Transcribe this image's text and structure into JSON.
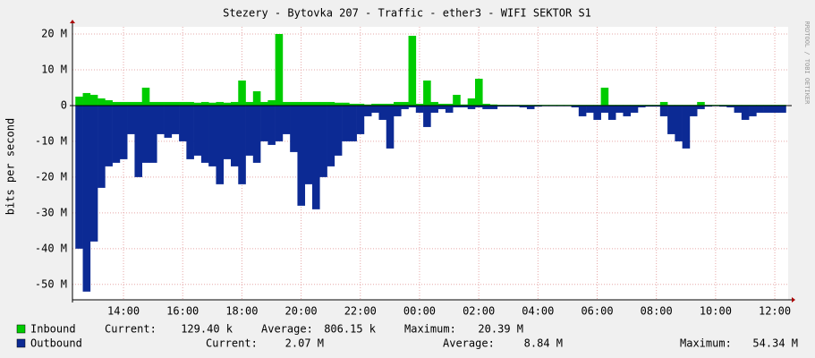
{
  "chart_data": {
    "type": "rrd-area",
    "title": "Stezery - Bytovka 207 - Traffic - ether3 - WIFI SEKTOR S1",
    "y_label": "bits per second",
    "watermark": "RRDTOOL / TOBI OETIKER",
    "categories": [
      null,
      null,
      null,
      null,
      null,
      null,
      "14:00",
      null,
      null,
      null,
      null,
      null,
      null,
      null,
      "16:00",
      null,
      null,
      null,
      null,
      null,
      null,
      null,
      "18:00",
      null,
      null,
      null,
      null,
      null,
      null,
      null,
      "20:00",
      null,
      null,
      null,
      null,
      null,
      null,
      null,
      "22:00",
      null,
      null,
      null,
      null,
      null,
      null,
      null,
      "00:00",
      null,
      null,
      null,
      null,
      null,
      null,
      null,
      "02:00",
      null,
      null,
      null,
      null,
      null,
      null,
      null,
      "04:00",
      null,
      null,
      null,
      null,
      null,
      null,
      null,
      "06:00",
      null,
      null,
      null,
      null,
      null,
      null,
      null,
      "08:00",
      null,
      null,
      null,
      null,
      null,
      null,
      null,
      "10:00",
      null,
      null,
      null,
      null,
      null,
      null,
      null,
      "12:00",
      null
    ],
    "ylim": [
      -54.3,
      22
    ],
    "yticks": [
      {
        "value": 20,
        "label": "20 M"
      },
      {
        "value": 10,
        "label": "10 M"
      },
      0,
      {
        "value": -10,
        "label": "-10 M"
      },
      {
        "value": -20,
        "label": "-20 M"
      },
      {
        "value": -30,
        "label": "-30 M"
      },
      {
        "value": -40,
        "label": "-40 M"
      },
      {
        "value": -50,
        "label": "-50 M"
      }
    ],
    "grid": true,
    "series": [
      {
        "name": "Inbound",
        "color": "#00cc00",
        "values": [
          2.5,
          3.5,
          3,
          2,
          1.5,
          1,
          1,
          1,
          1,
          5,
          1,
          1,
          1,
          1,
          1,
          1,
          0.8,
          1,
          0.8,
          1,
          0.8,
          1,
          7,
          1,
          4,
          1,
          1.5,
          20,
          1,
          1,
          1,
          1,
          1,
          1,
          1,
          0.8,
          0.8,
          0.5,
          0.5,
          0.3,
          0.5,
          0.5,
          0.5,
          1,
          1,
          19.5,
          0.5,
          7,
          1,
          0.5,
          0.5,
          3,
          0.3,
          2,
          7.5,
          0.5,
          0.3,
          0.2,
          0.2,
          0.2,
          0.2,
          0.2,
          0.2,
          0.2,
          0.2,
          0.2,
          0.2,
          0.2,
          0.2,
          0.2,
          0.2,
          5,
          0.2,
          0.2,
          0.2,
          0.2,
          0.2,
          0.2,
          0.2,
          1,
          0.2,
          0.2,
          0.2,
          0.2,
          1,
          0.2,
          0.2,
          0.2,
          0.2,
          0.2,
          0.2,
          0.2,
          0.2,
          0.2,
          0.2,
          0.2
        ],
        "stats": [
          {
            "label": "Current:",
            "value": "129.40 k"
          },
          {
            "label": "Average:",
            "value": "806.15 k"
          },
          {
            "label": "Maximum:",
            "value": "20.39 M"
          }
        ]
      },
      {
        "name": "Outbound",
        "color": "#0c2a94",
        "values": [
          -40,
          -52,
          -38,
          -23,
          -17,
          -16,
          -15,
          -8,
          -20,
          -16,
          -16,
          -8,
          -9,
          -8,
          -10,
          -15,
          -14,
          -16,
          -17,
          -22,
          -15,
          -17,
          -22,
          -14,
          -16,
          -10,
          -11,
          -10,
          -8,
          -13,
          -28,
          -22,
          -29,
          -20,
          -17,
          -14,
          -10,
          -10,
          -8,
          -3,
          -2,
          -4,
          -12,
          -3,
          -1,
          -0.5,
          -2,
          -6,
          -2,
          -1,
          -2,
          -0.5,
          -0.5,
          -1,
          -0.5,
          -1,
          -1,
          -0.3,
          -0.3,
          -0.3,
          -0.5,
          -1,
          -0.3,
          -0.2,
          -0.2,
          -0.2,
          -0.2,
          -0.5,
          -3,
          -2,
          -4,
          -2,
          -4,
          -2,
          -3,
          -2,
          -0.5,
          -0.3,
          -0.3,
          -3,
          -8,
          -10,
          -12,
          -3,
          -1,
          -0.3,
          -0.2,
          -0.3,
          -0.5,
          -2,
          -4,
          -3,
          -2,
          -2,
          -2,
          -2
        ],
        "stats": [
          {
            "label": "Current:",
            "value": "2.07 M"
          },
          {
            "label": "Average:",
            "value": "8.84 M"
          },
          {
            "label": "Maximum:",
            "value": "54.34 M"
          }
        ]
      }
    ]
  }
}
